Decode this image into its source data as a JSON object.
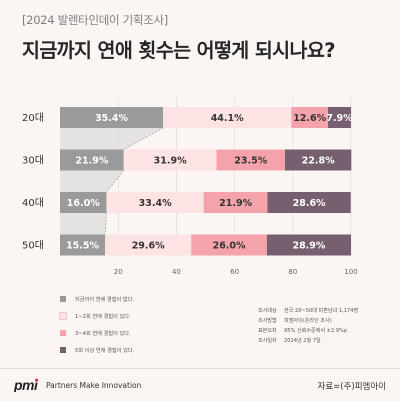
{
  "header": {
    "tag": "[2024 발렌타인데이 기획조사]",
    "title": "지금까지 연애 횟수는 어떻게 되시나요?"
  },
  "colors": {
    "background": "#fbf6f4",
    "series": [
      "#9a9a9a",
      "#fde3e3",
      "#f4a3ab",
      "#766070"
    ],
    "connector": "#d4d4d4"
  },
  "chart_data": {
    "type": "bar",
    "orientation": "horizontal",
    "stacked": true,
    "categories": [
      "20대",
      "30대",
      "40대",
      "50대"
    ],
    "series": [
      {
        "name": "지금까지 연애 경험이 없다.",
        "values": [
          35.4,
          21.9,
          16.0,
          15.5
        ]
      },
      {
        "name": "1~2회 연애 경험이 있다.",
        "values": [
          44.1,
          31.9,
          33.4,
          29.6
        ]
      },
      {
        "name": "3~4회 연애 경험이 있다.",
        "values": [
          12.6,
          23.5,
          21.9,
          26.0
        ]
      },
      {
        "name": "5회 이상 연애 경험이 있다.",
        "values": [
          7.9,
          22.8,
          28.6,
          28.9
        ]
      }
    ],
    "value_suffix": "%",
    "xlim": [
      0,
      100
    ],
    "xticks": [
      "20",
      "40",
      "60",
      "80",
      "100"
    ],
    "grid": true,
    "legend_position": "bottom-left"
  },
  "survey_info": [
    {
      "key": "조사대상",
      "value": "전국 20~50대 미혼남녀 1,174명"
    },
    {
      "key": "조사방법",
      "value": "피앰아이(온라인 조사)"
    },
    {
      "key": "표본오차",
      "value": "95% 신뢰수준에서 ±2.9%p"
    },
    {
      "key": "조사일자",
      "value": "2024년 2월 7일"
    }
  ],
  "footer": {
    "logo_text": "pmi",
    "tagline": "Partners Make Innovation",
    "source": "자료=(주)피엠아이"
  }
}
